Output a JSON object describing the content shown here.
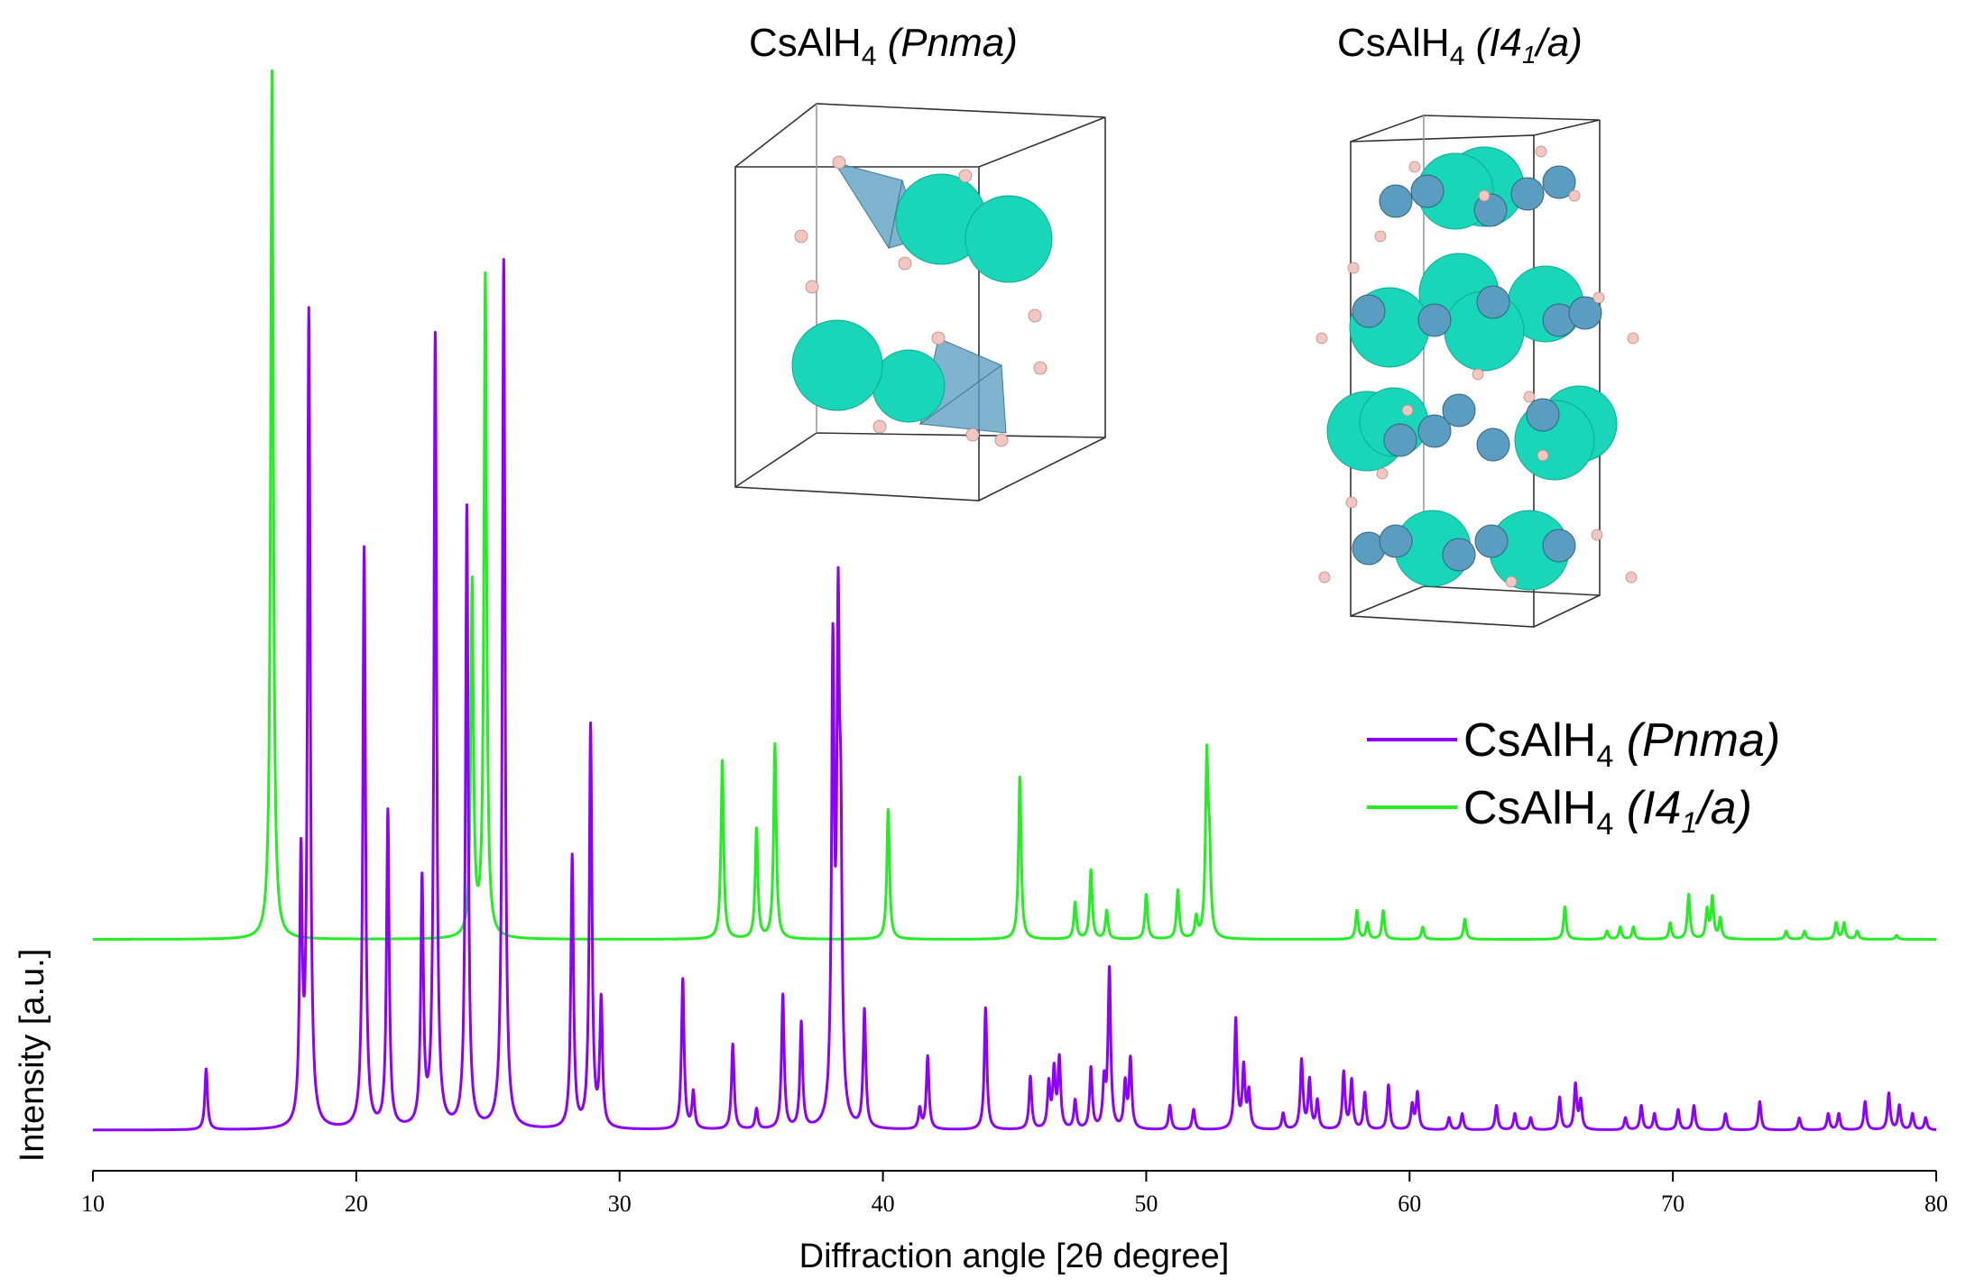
{
  "chart_data": {
    "type": "line",
    "xlabel": "Diffraction angle [2θ degree]",
    "ylabel": "Intensity [a.u.]",
    "xlim": [
      10,
      80
    ],
    "xticks": [
      10,
      20,
      30,
      40,
      50,
      60,
      70,
      80
    ],
    "y_ticks_shown": false,
    "grid": false,
    "legend_position": "upper-right",
    "series": [
      {
        "name": "CsAlH4 (Pnma)",
        "formula": "CsAlH",
        "subscript": "4",
        "space_group": "(Pnma)",
        "color": "#8B00FF",
        "baseline": 0,
        "peaks": [
          [
            14.3,
            15
          ],
          [
            17.9,
            64
          ],
          [
            18.2,
            200
          ],
          [
            20.3,
            143
          ],
          [
            21.2,
            78
          ],
          [
            22.5,
            60
          ],
          [
            23.0,
            195
          ],
          [
            24.2,
            153
          ],
          [
            25.6,
            214
          ],
          [
            28.2,
            67
          ],
          [
            28.9,
            99
          ],
          [
            29.3,
            31
          ],
          [
            32.4,
            37
          ],
          [
            32.8,
            9
          ],
          [
            34.3,
            21
          ],
          [
            35.2,
            5
          ],
          [
            36.2,
            33
          ],
          [
            36.9,
            26
          ],
          [
            38.1,
            113
          ],
          [
            38.3,
            114
          ],
          [
            38.4,
            57
          ],
          [
            39.3,
            29
          ],
          [
            41.4,
            5
          ],
          [
            41.7,
            18
          ],
          [
            43.9,
            30
          ],
          [
            45.6,
            13
          ],
          [
            46.3,
            11
          ],
          [
            46.5,
            14
          ],
          [
            46.7,
            17
          ],
          [
            47.3,
            7
          ],
          [
            47.9,
            15
          ],
          [
            48.4,
            11
          ],
          [
            48.6,
            39
          ],
          [
            49.2,
            11
          ],
          [
            49.4,
            17
          ],
          [
            50.9,
            6
          ],
          [
            51.8,
            5
          ],
          [
            53.4,
            27
          ],
          [
            53.7,
            15
          ],
          [
            53.9,
            9
          ],
          [
            55.2,
            4
          ],
          [
            55.9,
            17
          ],
          [
            56.2,
            12
          ],
          [
            56.5,
            7
          ],
          [
            57.5,
            14
          ],
          [
            57.8,
            12
          ],
          [
            58.3,
            9
          ],
          [
            59.2,
            11
          ],
          [
            60.1,
            6
          ],
          [
            60.3,
            9
          ],
          [
            61.5,
            3
          ],
          [
            62.0,
            4
          ],
          [
            63.3,
            6
          ],
          [
            64.0,
            4
          ],
          [
            64.6,
            3
          ],
          [
            65.7,
            8
          ],
          [
            66.3,
            11
          ],
          [
            66.5,
            7
          ],
          [
            68.2,
            3
          ],
          [
            68.8,
            6
          ],
          [
            69.3,
            4
          ],
          [
            70.2,
            5
          ],
          [
            70.8,
            6
          ],
          [
            72.0,
            4
          ],
          [
            73.3,
            7
          ],
          [
            74.8,
            3
          ],
          [
            75.9,
            4
          ],
          [
            76.3,
            4
          ],
          [
            77.3,
            7
          ],
          [
            78.2,
            9
          ],
          [
            78.6,
            6
          ],
          [
            79.1,
            4
          ],
          [
            79.6,
            3
          ]
        ]
      },
      {
        "name": "CsAlH4 (I41/a)",
        "formula": "CsAlH",
        "subscript": "4",
        "space_group_pre": "(I4",
        "space_group_sub": "1",
        "space_group_post": "/a)",
        "color": "#22EE22",
        "baseline": 47,
        "peaks": [
          [
            16.8,
            214
          ],
          [
            24.4,
            87
          ],
          [
            24.9,
            163
          ],
          [
            33.9,
            44
          ],
          [
            35.2,
            27
          ],
          [
            35.9,
            48
          ],
          [
            40.2,
            32
          ],
          [
            45.2,
            40
          ],
          [
            47.3,
            9
          ],
          [
            47.9,
            17
          ],
          [
            48.5,
            7
          ],
          [
            50.0,
            11
          ],
          [
            51.2,
            12
          ],
          [
            51.9,
            5
          ],
          [
            52.3,
            43
          ],
          [
            52.4,
            18
          ],
          [
            58.0,
            7
          ],
          [
            58.4,
            4
          ],
          [
            59.0,
            7
          ],
          [
            60.5,
            3
          ],
          [
            62.1,
            5
          ],
          [
            65.9,
            8
          ],
          [
            67.5,
            2
          ],
          [
            68.0,
            3
          ],
          [
            68.5,
            3
          ],
          [
            69.9,
            4
          ],
          [
            70.6,
            11
          ],
          [
            71.3,
            7
          ],
          [
            71.5,
            10
          ],
          [
            71.8,
            5
          ],
          [
            74.3,
            2
          ],
          [
            75.0,
            2
          ],
          [
            76.2,
            4
          ],
          [
            76.5,
            4
          ],
          [
            77.0,
            2
          ],
          [
            78.5,
            1
          ]
        ]
      }
    ],
    "insets": [
      {
        "title_formula": "CsAlH",
        "title_sub": "4",
        "title_group": "(Pnma)",
        "structure": "orthorhombic unit cell with AlH4 tetrahedra and Cs atoms"
      },
      {
        "title_formula": "CsAlH",
        "title_sub": "4",
        "title_group_pre": "(I4",
        "title_group_sub": "1",
        "title_group_post": "/a)",
        "structure": "tetragonal unit cell with Cs atoms and AlH4 units"
      }
    ],
    "structure_colors": {
      "cs": "#19D6B8",
      "al": "#5B9DC0",
      "h": "#F4C6C0"
    }
  }
}
